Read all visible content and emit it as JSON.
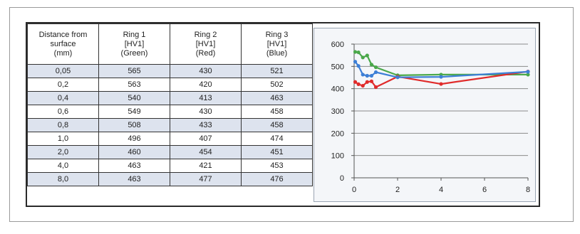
{
  "table": {
    "headers": [
      [
        "Distance from",
        "surface",
        "(mm)"
      ],
      [
        "Ring 1",
        "[HV1]",
        "(Green)"
      ],
      [
        "Ring 2",
        "[HV1]",
        "(Red)"
      ],
      [
        "Ring 3",
        "[HV1]",
        "(Blue)"
      ]
    ],
    "rows": [
      [
        "0,05",
        "565",
        "430",
        "521"
      ],
      [
        "0,2",
        "563",
        "420",
        "502"
      ],
      [
        "0,4",
        "540",
        "413",
        "463"
      ],
      [
        "0,6",
        "549",
        "430",
        "458"
      ],
      [
        "0,8",
        "508",
        "433",
        "458"
      ],
      [
        "1,0",
        "496",
        "407",
        "474"
      ],
      [
        "2,0",
        "460",
        "454",
        "451"
      ],
      [
        "4,0",
        "463",
        "421",
        "453"
      ],
      [
        "8,0",
        "463",
        "477",
        "476"
      ]
    ]
  },
  "chart_data": {
    "type": "line",
    "title": "",
    "xlabel": "",
    "ylabel": "",
    "x": [
      0.05,
      0.2,
      0.4,
      0.6,
      0.8,
      1.0,
      2.0,
      4.0,
      8.0
    ],
    "xlim": [
      0,
      8
    ],
    "ylim": [
      0,
      600
    ],
    "x_ticks": [
      "0",
      "2",
      "4",
      "6",
      "8"
    ],
    "y_ticks": [
      "0",
      "100",
      "200",
      "300",
      "400",
      "500",
      "600"
    ],
    "grid": "horizontal",
    "legend": "none",
    "series": [
      {
        "color": "#4aa84a",
        "values": [
          565,
          563,
          540,
          549,
          508,
          496,
          460,
          463,
          463
        ]
      },
      {
        "color": "#e02b2b",
        "values": [
          430,
          420,
          413,
          430,
          433,
          407,
          454,
          421,
          477
        ]
      },
      {
        "color": "#3d7fd6",
        "values": [
          521,
          502,
          463,
          458,
          458,
          474,
          451,
          453,
          476
        ]
      }
    ]
  }
}
